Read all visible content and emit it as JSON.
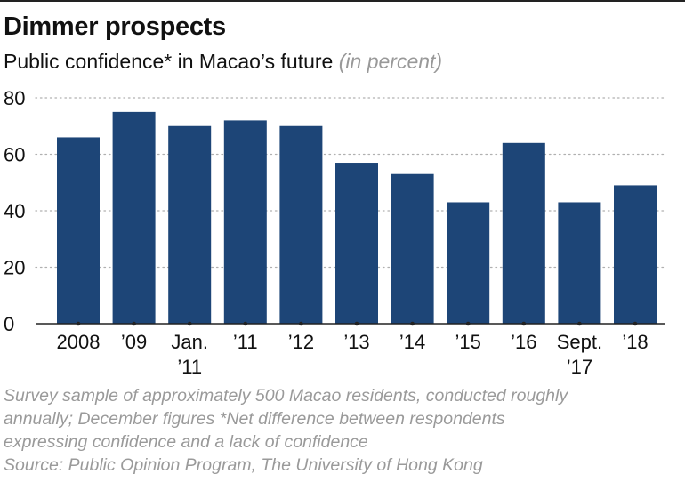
{
  "title": "Dimmer prospects",
  "subtitle": "Public confidence* in Macao’s future",
  "subtitle_unit": "(in percent)",
  "colors": {
    "bar": "#1d4577",
    "grid": "#b0b0b0",
    "text": "#111111",
    "note": "#9a9a9a"
  },
  "chart_data": {
    "type": "bar",
    "title": "Dimmer prospects",
    "subtitle": "Public confidence* in Macao’s future (in percent)",
    "xlabel": "",
    "ylabel": "",
    "ylim": [
      0,
      80
    ],
    "yticks": [
      0,
      20,
      40,
      60,
      80
    ],
    "grid": true,
    "categories": [
      "2008",
      "'09",
      "Jan. '11",
      "'11",
      "'12",
      "'13",
      "'14",
      "'15",
      "'16",
      "Sept. '17",
      "'18"
    ],
    "category_lines": [
      [
        "2008"
      ],
      [
        "’09"
      ],
      [
        "Jan.",
        "’11"
      ],
      [
        "’11"
      ],
      [
        "’12"
      ],
      [
        "’13"
      ],
      [
        "’14"
      ],
      [
        "’15"
      ],
      [
        "’16"
      ],
      [
        "Sept.",
        "’17"
      ],
      [
        "’18"
      ]
    ],
    "values": [
      66,
      75,
      70,
      72,
      70,
      57,
      53,
      43,
      64,
      43,
      49
    ]
  },
  "notes": {
    "line1": "Survey sample of approximately 500 Macao residents, conducted roughly",
    "line2": "annually; December figures  *Net difference between respondents",
    "line3": "expressing confidence and a lack of confidence",
    "source": "Source: Public Opinion Program, The University of Hong Kong"
  }
}
